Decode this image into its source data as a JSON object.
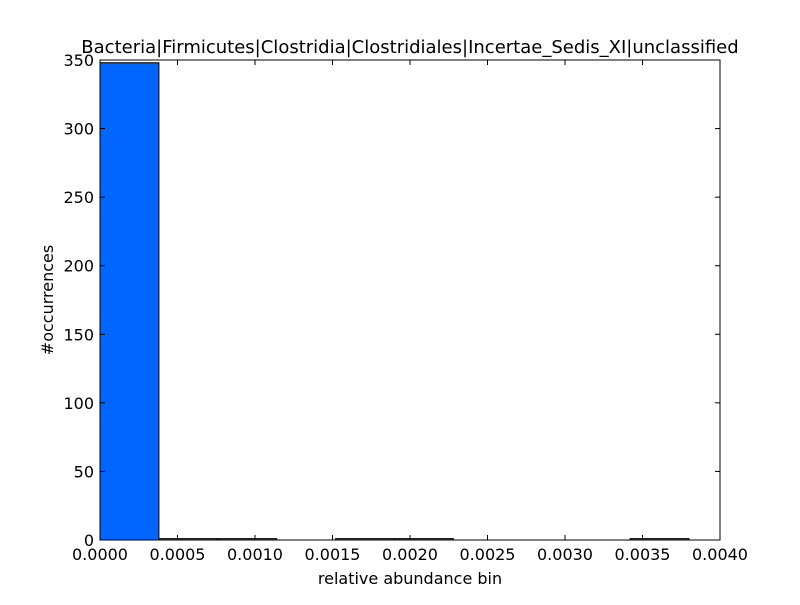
{
  "chart_data": {
    "type": "bar",
    "title": "Bacteria|Firmicutes|Clostridia|Clostridiales|Incertae_Sedis_XI|unclassified",
    "xlabel": "relative abundance bin",
    "ylabel": "#occurrences",
    "xlim": [
      0,
      0.004
    ],
    "ylim": [
      0,
      350
    ],
    "x_ticks": [
      "0.0000",
      "0.0005",
      "0.0010",
      "0.0015",
      "0.0020",
      "0.0025",
      "0.0030",
      "0.0035",
      "0.0040"
    ],
    "y_ticks": [
      "0",
      "50",
      "100",
      "150",
      "200",
      "250",
      "300",
      "350"
    ],
    "x_tick_values": [
      0,
      0.0005,
      0.001,
      0.0015,
      0.002,
      0.0025,
      0.003,
      0.0035,
      0.004
    ],
    "y_tick_values": [
      0,
      50,
      100,
      150,
      200,
      250,
      300,
      350
    ],
    "bin_edges": [
      0,
      0.00038,
      0.00076,
      0.00114,
      0.00152,
      0.0019,
      0.00228,
      0.00266,
      0.00304,
      0.00342,
      0.0038
    ],
    "values": [
      348,
      1,
      1,
      0,
      1,
      1,
      0,
      0,
      0,
      1
    ],
    "bar_color": "#0066ff",
    "edge_color": "#000000",
    "grid": false,
    "legend": false
  }
}
